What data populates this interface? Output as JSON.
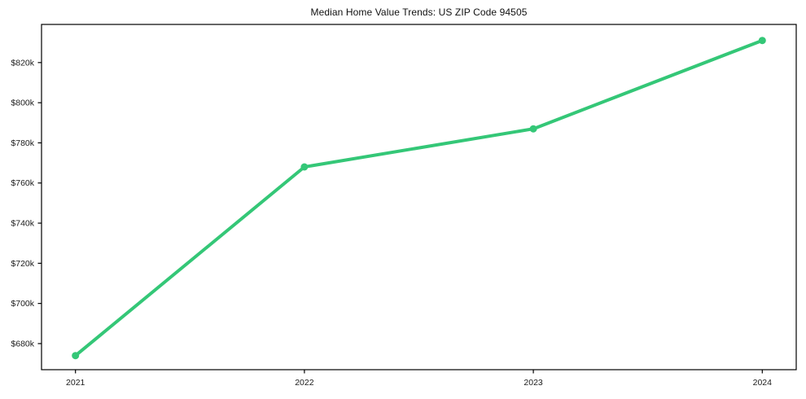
{
  "title": "Median Home Value Trends: US ZIP Code 94505",
  "chart_data": {
    "type": "line",
    "title": "Median Home Value Trends: US ZIP Code 94505",
    "xlabel": "",
    "ylabel": "",
    "x_labels": [
      "2021",
      "2022",
      "2023",
      "2024"
    ],
    "series": [
      {
        "name": "median-home-value",
        "values": [
          674000,
          768000,
          787000,
          831000
        ],
        "color": "#34c777",
        "marker": "circle"
      }
    ],
    "ylim": [
      667000,
      839000
    ],
    "y_ticks": [
      680000,
      700000,
      720000,
      740000,
      760000,
      780000,
      800000,
      820000
    ],
    "y_tick_labels": [
      "$680k",
      "$700k",
      "$720k",
      "$740k",
      "$760k",
      "$780k",
      "$800k",
      "$820k"
    ],
    "grid": false,
    "legend": "none",
    "axis_color": "#000000",
    "text_color": "#1a1a1a",
    "background_color": "#ffffff"
  }
}
